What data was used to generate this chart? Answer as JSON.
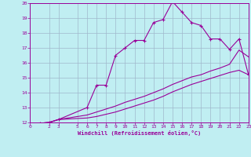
{
  "xlabel": "Windchill (Refroidissement éolien,°C)",
  "xlim": [
    0,
    23
  ],
  "ylim": [
    12,
    20
  ],
  "xticks": [
    0,
    2,
    3,
    5,
    6,
    7,
    8,
    9,
    10,
    11,
    12,
    13,
    14,
    15,
    16,
    17,
    18,
    19,
    20,
    21,
    22,
    23
  ],
  "yticks": [
    12,
    13,
    14,
    15,
    16,
    17,
    18,
    19,
    20
  ],
  "bg_color": "#c0eef2",
  "grid_color": "#a0b8cc",
  "line_color": "#990099",
  "lines": [
    {
      "x": [
        1,
        2,
        3,
        6,
        7,
        8,
        9,
        10,
        11,
        12,
        13,
        14,
        15,
        16,
        17,
        18,
        19,
        20,
        21,
        22,
        23
      ],
      "y": [
        11.95,
        12.0,
        12.2,
        13.0,
        14.5,
        14.5,
        16.5,
        17.0,
        17.5,
        17.5,
        18.7,
        18.9,
        20.1,
        19.4,
        18.7,
        18.5,
        17.6,
        17.6,
        16.9,
        17.6,
        15.2
      ],
      "marker": true
    },
    {
      "x": [
        1,
        2,
        3,
        6,
        7,
        8,
        9,
        10,
        11,
        12,
        13,
        14,
        15,
        16,
        17,
        18,
        19,
        20,
        21,
        22,
        23
      ],
      "y": [
        11.95,
        12.0,
        12.2,
        12.5,
        12.7,
        12.9,
        13.1,
        13.35,
        13.55,
        13.75,
        14.0,
        14.25,
        14.55,
        14.8,
        15.05,
        15.2,
        15.45,
        15.65,
        15.9,
        16.85,
        16.4
      ],
      "marker": false
    },
    {
      "x": [
        1,
        2,
        3,
        6,
        7,
        8,
        9,
        10,
        11,
        12,
        13,
        14,
        15,
        16,
        17,
        18,
        19,
        20,
        21,
        22,
        23
      ],
      "y": [
        11.95,
        12.0,
        12.2,
        12.3,
        12.4,
        12.55,
        12.7,
        12.9,
        13.1,
        13.3,
        13.5,
        13.75,
        14.05,
        14.3,
        14.55,
        14.75,
        14.95,
        15.15,
        15.35,
        15.5,
        15.2
      ],
      "marker": false
    }
  ]
}
